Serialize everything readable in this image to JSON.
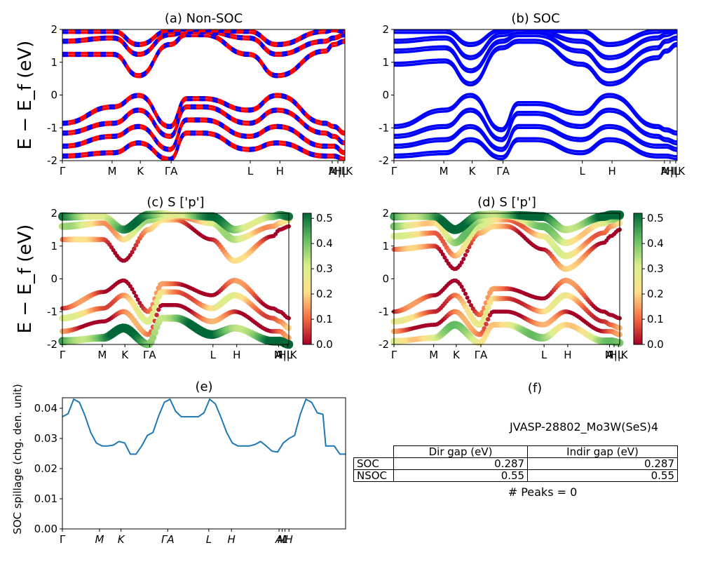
{
  "chart_data": [
    {
      "id": "a",
      "type": "line",
      "title": "(a) Non-SOC",
      "ylabel": "E − E_f (eV)",
      "ylim": [
        -2,
        2
      ],
      "yticks": [
        "-2",
        "-1",
        "0",
        "1",
        "2"
      ],
      "xticks": [
        "Γ",
        "M",
        "K",
        "ΓA",
        "L",
        "H",
        "A",
        "M|L",
        "H|K"
      ],
      "series": [
        {
          "color": "#ff0000",
          "values": []
        },
        {
          "color": "#0000ff",
          "dashed": true,
          "values": []
        }
      ],
      "bands": {
        "k": [
          0,
          0.18,
          0.27,
          0.38,
          0.44,
          0.5,
          0.66,
          0.76,
          0.93,
          0.96,
          1.0
        ],
        "conduction": [
          [
            1.2,
            1.2,
            0.55,
            1.5,
            1.8,
            1.8,
            1.2,
            0.55,
            1.3,
            1.5,
            1.6
          ],
          [
            1.6,
            1.7,
            1.2,
            1.8,
            1.9,
            1.9,
            1.7,
            1.2,
            1.6,
            1.7,
            1.8
          ],
          [
            1.9,
            1.9,
            1.5,
            1.95,
            1.98,
            1.95,
            1.9,
            1.5,
            1.9,
            1.95,
            1.9
          ]
        ],
        "valence": [
          [
            -0.9,
            -0.4,
            -0.05,
            -1.0,
            -0.15,
            -0.15,
            -0.5,
            -0.05,
            -0.9,
            -1.0,
            -1.2
          ],
          [
            -1.2,
            -0.9,
            -0.5,
            -1.3,
            -0.4,
            -0.4,
            -0.9,
            -0.5,
            -1.2,
            -1.3,
            -1.5
          ],
          [
            -1.6,
            -1.3,
            -1.0,
            -1.7,
            -0.8,
            -0.8,
            -1.3,
            -1.0,
            -1.6,
            -1.6,
            -1.8
          ],
          [
            -1.9,
            -1.8,
            -1.5,
            -2.0,
            -1.2,
            -1.2,
            -1.7,
            -1.5,
            -1.9,
            -1.9,
            -2.0
          ]
        ]
      }
    },
    {
      "id": "b",
      "type": "line",
      "title": "(b) SOC",
      "ylim": [
        -2,
        2
      ],
      "yticks": [
        "-2",
        "-1",
        "0",
        "1",
        "2"
      ],
      "xticks": [
        "Γ",
        "M",
        "K",
        "ΓA",
        "L",
        "H",
        "A",
        "M|L",
        "H|K"
      ],
      "series": [
        {
          "color": "#0000ff",
          "values": []
        }
      ],
      "bands": {
        "k": [
          0,
          0.18,
          0.27,
          0.38,
          0.44,
          0.5,
          0.66,
          0.76,
          0.93,
          0.96,
          1.0
        ],
        "conduction": [
          [
            0.9,
            1.0,
            0.3,
            1.4,
            1.6,
            1.6,
            0.9,
            0.3,
            1.1,
            1.3,
            1.5
          ],
          [
            1.3,
            1.4,
            0.7,
            1.6,
            1.8,
            1.8,
            1.3,
            0.7,
            1.4,
            1.6,
            1.7
          ],
          [
            1.6,
            1.7,
            1.1,
            1.8,
            1.9,
            1.9,
            1.6,
            1.1,
            1.7,
            1.8,
            1.9
          ],
          [
            1.9,
            1.9,
            1.5,
            1.95,
            1.98,
            1.95,
            1.9,
            1.5,
            1.9,
            1.95,
            1.95
          ]
        ],
        "valence": [
          [
            -1.0,
            -0.5,
            -0.05,
            -1.1,
            -0.3,
            -0.3,
            -0.6,
            -0.05,
            -1.0,
            -1.1,
            -1.2
          ],
          [
            -1.3,
            -1.0,
            -0.5,
            -1.4,
            -0.6,
            -0.6,
            -1.0,
            -0.5,
            -1.3,
            -1.4,
            -1.5
          ],
          [
            -1.6,
            -1.4,
            -1.0,
            -1.7,
            -1.0,
            -1.0,
            -1.4,
            -1.0,
            -1.6,
            -1.6,
            -1.7
          ],
          [
            -1.9,
            -1.8,
            -1.4,
            -1.95,
            -1.4,
            -1.4,
            -1.8,
            -1.4,
            -1.9,
            -1.9,
            -1.95
          ]
        ]
      }
    },
    {
      "id": "c",
      "type": "scatter",
      "title": "(c)  S ['p']",
      "ylabel": "E − E_f (eV)",
      "ylim": [
        -2,
        2
      ],
      "yticks": [
        "-2",
        "-1",
        "0",
        "1",
        "2"
      ],
      "xticks": [
        "Γ",
        "M",
        "K",
        "ΓA",
        "L",
        "H",
        "A",
        "M|L",
        "H|K"
      ],
      "colorbar": {
        "min": 0.0,
        "max": 0.52,
        "ticks": [
          "0.0",
          "0.1",
          "0.2",
          "0.3",
          "0.4",
          "0.5"
        ],
        "cmap": "RdYlGn"
      },
      "bands": {
        "k": [
          0,
          0.18,
          0.27,
          0.38,
          0.44,
          0.5,
          0.66,
          0.76,
          0.93,
          0.96,
          1.0
        ],
        "conduction": [
          [
            1.2,
            1.2,
            0.55,
            1.5,
            1.8,
            1.8,
            1.2,
            0.55,
            1.3,
            1.5,
            1.6
          ],
          [
            1.6,
            1.7,
            1.2,
            1.8,
            1.9,
            1.9,
            1.7,
            1.2,
            1.6,
            1.7,
            1.8
          ],
          [
            1.9,
            1.9,
            1.5,
            1.95,
            1.98,
            1.95,
            1.9,
            1.5,
            1.9,
            1.95,
            1.9
          ]
        ],
        "valence": [
          [
            -0.9,
            -0.4,
            -0.05,
            -1.0,
            -0.15,
            -0.15,
            -0.5,
            -0.05,
            -0.9,
            -1.0,
            -1.2
          ],
          [
            -1.2,
            -0.9,
            -0.5,
            -1.3,
            -0.4,
            -0.4,
            -0.9,
            -0.5,
            -1.2,
            -1.3,
            -1.5
          ],
          [
            -1.6,
            -1.3,
            -1.0,
            -1.7,
            -0.8,
            -0.8,
            -1.3,
            -1.0,
            -1.6,
            -1.6,
            -1.8
          ],
          [
            -1.9,
            -1.8,
            -1.5,
            -2.0,
            -1.2,
            -1.2,
            -1.7,
            -1.5,
            -1.9,
            -1.9,
            -2.0
          ]
        ],
        "weights_conduction": [
          0.1,
          0.25,
          0.4
        ],
        "weights_valence": [
          0.03,
          0.18,
          0.05,
          0.45
        ]
      }
    },
    {
      "id": "d",
      "type": "scatter",
      "title": "(d) S ['p']",
      "ylim": [
        -2,
        2
      ],
      "yticks": [
        "-2",
        "-1",
        "0",
        "1",
        "2"
      ],
      "xticks": [
        "Γ",
        "M",
        "K",
        "ΓA",
        "L",
        "H",
        "A",
        "M|L",
        "H|K"
      ],
      "colorbar": {
        "min": 0.0,
        "max": 0.52,
        "ticks": [
          "0.0",
          "0.1",
          "0.2",
          "0.3",
          "0.4",
          "0.5"
        ],
        "cmap": "RdYlGn"
      },
      "bands": {
        "k": [
          0,
          0.18,
          0.27,
          0.38,
          0.44,
          0.5,
          0.66,
          0.76,
          0.93,
          0.96,
          1.0
        ],
        "conduction": [
          [
            0.9,
            1.0,
            0.3,
            1.4,
            1.6,
            1.6,
            0.9,
            0.3,
            1.1,
            1.3,
            1.5
          ],
          [
            1.3,
            1.4,
            0.7,
            1.6,
            1.8,
            1.8,
            1.3,
            0.7,
            1.4,
            1.6,
            1.7
          ],
          [
            1.6,
            1.7,
            1.1,
            1.8,
            1.9,
            1.9,
            1.6,
            1.1,
            1.7,
            1.8,
            1.9
          ],
          [
            1.9,
            1.9,
            1.5,
            1.95,
            1.98,
            1.95,
            1.9,
            1.5,
            1.9,
            1.95,
            1.95
          ]
        ],
        "valence": [
          [
            -1.0,
            -0.5,
            -0.05,
            -1.1,
            -0.3,
            -0.3,
            -0.6,
            -0.05,
            -1.0,
            -1.1,
            -1.2
          ],
          [
            -1.3,
            -1.0,
            -0.5,
            -1.4,
            -0.6,
            -0.6,
            -1.0,
            -0.5,
            -1.3,
            -1.4,
            -1.5
          ],
          [
            -1.6,
            -1.4,
            -1.0,
            -1.7,
            -1.0,
            -1.0,
            -1.4,
            -1.0,
            -1.6,
            -1.6,
            -1.7
          ],
          [
            -1.9,
            -1.8,
            -1.4,
            -1.95,
            -1.4,
            -1.4,
            -1.8,
            -1.4,
            -1.9,
            -1.9,
            -1.95
          ]
        ],
        "weights_conduction": [
          0.08,
          0.2,
          0.3,
          0.45
        ],
        "weights_valence": [
          0.03,
          0.15,
          0.05,
          0.3
        ]
      }
    },
    {
      "id": "e",
      "type": "line",
      "title": "(e)",
      "ylabel": "SOC spillage (chg. den. unit)",
      "ylim": [
        0.0,
        0.0435
      ],
      "yticks": [
        "0.00",
        "0.01",
        "0.02",
        "0.03",
        "0.04"
      ],
      "ytick_values": [
        0.0,
        0.01,
        0.02,
        0.03,
        0.04
      ],
      "xticks": [
        "Γ",
        "M",
        "K",
        "ΓA",
        "L",
        "H",
        "A",
        "M",
        "L",
        "H"
      ],
      "xtick_pos": [
        0,
        0.131,
        0.207,
        0.372,
        0.517,
        0.597,
        0.765,
        0.776,
        0.786,
        0.8
      ],
      "series": [
        {
          "color": "#1f77b4",
          "x": [
            0,
            0.02,
            0.04,
            0.06,
            0.08,
            0.1,
            0.12,
            0.14,
            0.16,
            0.18,
            0.2,
            0.22,
            0.24,
            0.26,
            0.28,
            0.3,
            0.32,
            0.34,
            0.36,
            0.38,
            0.4,
            0.42,
            0.44,
            0.46,
            0.48,
            0.5,
            0.52,
            0.54,
            0.56,
            0.58,
            0.6,
            0.62,
            0.64,
            0.66,
            0.68,
            0.7,
            0.72,
            0.74,
            0.76,
            0.78,
            0.8,
            0.82,
            0.84,
            0.86,
            0.88,
            0.9,
            0.92,
            0.93,
            0.96,
            0.98,
            1.0
          ],
          "values": [
            0.0372,
            0.0382,
            0.043,
            0.042,
            0.0375,
            0.032,
            0.0285,
            0.0275,
            0.0275,
            0.0278,
            0.029,
            0.0285,
            0.0248,
            0.0248,
            0.0275,
            0.031,
            0.032,
            0.0375,
            0.042,
            0.043,
            0.039,
            0.0372,
            0.0372,
            0.0372,
            0.0372,
            0.0385,
            0.043,
            0.0415,
            0.037,
            0.032,
            0.0285,
            0.0275,
            0.0275,
            0.0275,
            0.028,
            0.029,
            0.0275,
            0.0258,
            0.0255,
            0.0285,
            0.03,
            0.031,
            0.038,
            0.043,
            0.042,
            0.0385,
            0.038,
            0.0275,
            0.0275,
            0.0248,
            0.0248
          ]
        }
      ]
    },
    {
      "id": "f",
      "type": "table",
      "title": "(f)",
      "subtitle": "JVASP-28802_Mo3W(SeS)4",
      "columns": [
        "Dir gap (eV)",
        "Indir gap (eV)"
      ],
      "rows": [
        {
          "label": "SOC",
          "values": [
            "0.287",
            "0.287"
          ]
        },
        {
          "label": "NSOC",
          "values": [
            "0.55",
            "0.55"
          ]
        }
      ],
      "footer": "# Peaks = 0"
    }
  ]
}
